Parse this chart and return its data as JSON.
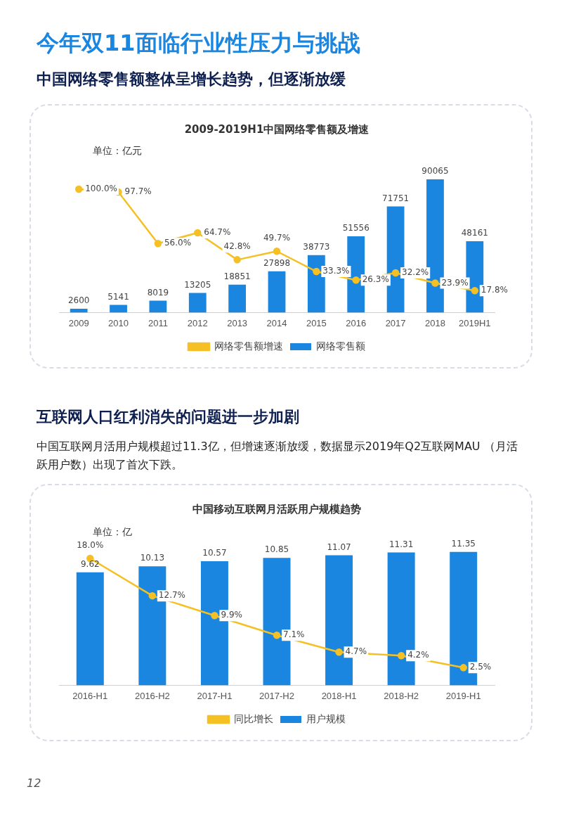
{
  "chart_data": [
    {
      "type": "bar",
      "title": "2009-2019H1中国网络零售额及增速",
      "ylabel": "单位：亿元",
      "annotations": [
        "今年双11面临行业性压力与挑战",
        "中国网络零售额整体呈增长趋势，但逐渐放缓"
      ],
      "categories": [
        "2009",
        "2010",
        "2011",
        "2012",
        "2013",
        "2014",
        "2015",
        "2016",
        "2017",
        "2018",
        "2019H1"
      ],
      "series": [
        {
          "name": "网络零售额",
          "color": "#1a86e0",
          "values": [
            2600,
            5141,
            8019,
            13205,
            18851,
            27898,
            38773,
            51556,
            71751,
            90065,
            48161
          ],
          "value_labels": [
            "2600",
            "5141",
            "8019",
            "13205",
            "18851",
            "27898",
            "38773",
            "51556",
            "71751",
            "90065",
            "48161"
          ]
        },
        {
          "name": "网络零售额增速",
          "type": "line",
          "axis": "y2",
          "color": "#f5c024",
          "values": [
            100.0,
            97.7,
            56.0,
            64.7,
            42.8,
            49.7,
            33.3,
            26.3,
            32.2,
            23.9,
            17.8
          ],
          "value_labels": [
            "100.0%",
            "97.7%",
            "56.0%",
            "64.7%",
            "42.8%",
            "49.7%",
            "33.3%",
            "26.3%",
            "32.2%",
            "23.9%",
            "17.8%"
          ]
        }
      ],
      "marker": "circle",
      "grid": false,
      "legend": "bottom",
      "tick_labels": "x"
    },
    {
      "type": "bar",
      "title": "中国移动互联网月活跃用户规模趋势",
      "ylabel": "单位：亿",
      "annotations": [
        "互联网人口红利消失的问题进一步加剧",
        "中国互联网月活用户规模超过11.3亿，但增速逐渐放缓，数据显示2019年Q2互联网MAU （月活跃用户数）出现了首次下跌。",
        "12"
      ],
      "categories": [
        "2016-H1",
        "2016-H2",
        "2017-H1",
        "2017-H2",
        "2018-H1",
        "2018-H2",
        "2019-H1"
      ],
      "series": [
        {
          "name": "用户规模",
          "color": "#1a86e0",
          "values": [
            9.62,
            10.13,
            10.57,
            10.85,
            11.07,
            11.31,
            11.35
          ],
          "value_labels": [
            "9.62",
            "10.13",
            "10.57",
            "10.85",
            "11.07",
            "11.31",
            "11.35"
          ]
        },
        {
          "name": "同比增长",
          "type": "line",
          "axis": "y2",
          "color": "#f5c024",
          "values": [
            18.0,
            12.7,
            9.9,
            7.1,
            4.7,
            4.2,
            2.5
          ],
          "value_labels": [
            "18.0%",
            "12.7%",
            "9.9%",
            "7.1%",
            "4.7%",
            "4.2%",
            "2.5%"
          ]
        }
      ],
      "marker": "circle",
      "grid": false,
      "legend": "bottom",
      "tick_labels": "x"
    }
  ]
}
